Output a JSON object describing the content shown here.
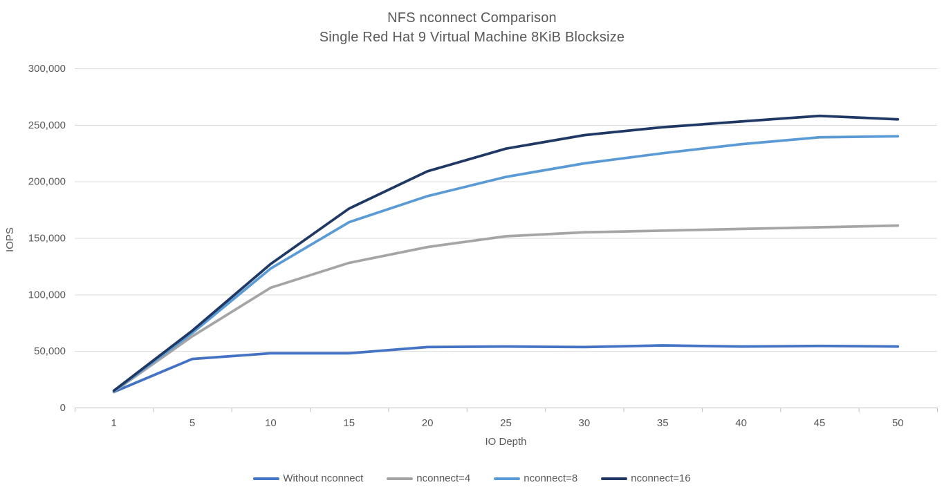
{
  "chart_data": {
    "type": "line",
    "title_line1": "NFS nconnect Comparison",
    "title_line2": "Single Red Hat 9 Virtual Machine 8KiB Blocksize",
    "xlabel": "IO Depth",
    "ylabel": "IOPS",
    "categories": [
      "1",
      "5",
      "10",
      "15",
      "20",
      "25",
      "30",
      "35",
      "40",
      "45",
      "50"
    ],
    "y_ticks": [
      0,
      50000,
      100000,
      150000,
      200000,
      250000,
      300000
    ],
    "ylim": [
      0,
      300000
    ],
    "grid": "horizontal-only",
    "legend_position": "bottom-center",
    "series": [
      {
        "name": "Without nconnect",
        "color": "#4472C4",
        "values": [
          13800,
          43000,
          48000,
          48000,
          53500,
          54000,
          53500,
          55000,
          54000,
          54500,
          54000
        ]
      },
      {
        "name": "nconnect=4",
        "color": "#A5A5A5",
        "values": [
          14200,
          63000,
          106000,
          128000,
          142000,
          151500,
          155000,
          156500,
          158000,
          159500,
          161000
        ]
      },
      {
        "name": "nconnect=8",
        "color": "#5B9BD5",
        "values": [
          14500,
          66000,
          123000,
          164000,
          187000,
          204000,
          216000,
          225000,
          233000,
          239000,
          240000
        ]
      },
      {
        "name": "nconnect=16",
        "color": "#1F3864",
        "values": [
          15000,
          68000,
          127000,
          176000,
          209000,
          229000,
          241000,
          248000,
          253000,
          258000,
          255000
        ]
      }
    ]
  },
  "colors": {
    "background": "#FFFFFF",
    "title_text": "#595959",
    "tick_text": "#595959",
    "gridline": "#D9D9D9",
    "axis_line": "#BFBFBF"
  }
}
